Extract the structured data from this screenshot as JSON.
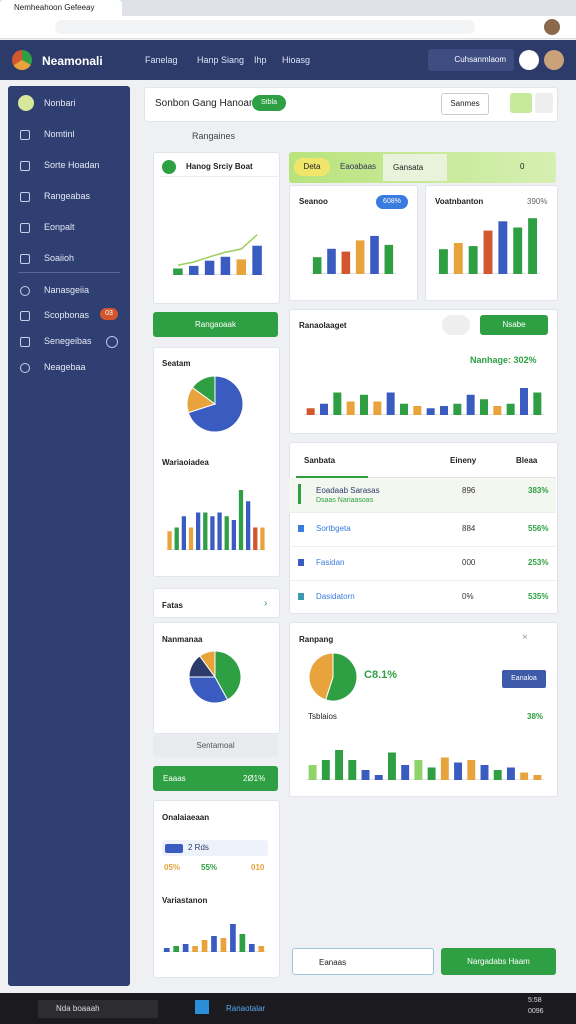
{
  "browser": {
    "tab": "Nemheahoon Gefeeay"
  },
  "header": {
    "brand": "Neamonali",
    "nav": [
      "Fanelag",
      "Hanp Siang",
      "Ihp",
      "Hioasg"
    ],
    "user": "Cuhsanmlaom"
  },
  "sidebar": {
    "items": [
      "Nonbari",
      "Nomtinl",
      "Sorte Hoadan",
      "Rangeabas",
      "Eonpalt",
      "Soaiioh",
      "Nanasgeiia",
      "Scopbonas",
      "Senegeibas",
      "Neagebaa"
    ],
    "badge": "03"
  },
  "toolbar": {
    "title": "Sonbon Gang Hanoante",
    "status": "Stbla",
    "button": "Sanmes"
  },
  "section": "Rangaines",
  "left": {
    "card1": "Hanog Srciy Boat",
    "button1": "Rangaoaak",
    "pie1": "Seatam",
    "bars1": "Wariaoiadea",
    "fatas": "Fatas",
    "pie2": "Nanmanaa",
    "grey": "Sentamoal",
    "green": "Eaaas",
    "green_value": "2Ø1%",
    "card4": "Onalaiaeaan",
    "row1": "2 Rds",
    "row2a": "05%",
    "row2b": "55%",
    "row2c": "010",
    "bars2": "Variastanon"
  },
  "tabs": [
    "Deta",
    "Eaoabaas",
    "Gansata",
    "0"
  ],
  "cards": {
    "seanoo": "Seanoo",
    "seanoo_badge": "608%",
    "voat": "Voatnbanton",
    "voat_value": "390%",
    "rana": "Ranaolaaget",
    "rana_button": "Nsabe",
    "rana_value": "Nanhage: 302%",
    "ranpang": "Ranpang",
    "ranpang_value": "C8.1%",
    "ranpang_button": "Eanaloa",
    "tsb": "Tsblaios",
    "tsb_value": "38%"
  },
  "table": {
    "header": [
      "Sanbata",
      "Eineny",
      "Bleaa"
    ],
    "rows": [
      [
        "Eoadaab Sarasas",
        "896",
        "383%"
      ],
      [
        "Sortbgeta",
        "884",
        "556%"
      ],
      [
        "Fasidan",
        "000",
        "253%"
      ],
      [
        "Dasidatorn",
        "0%",
        "535%"
      ]
    ],
    "sub": "Dsaas Nariaasoas"
  },
  "bottom": {
    "left": "Eanaas",
    "right": "Nargadabs Haam"
  },
  "taskbar": {
    "search": "Nda boaaah",
    "app": "Ranaotalar",
    "time": "5:58",
    "date": "0096"
  },
  "charts": {
    "c1": {
      "type": "bar",
      "ylim": [
        0,
        100
      ],
      "values": [
        10,
        14,
        22,
        28,
        24,
        45
      ],
      "colors": [
        "#2ea043",
        "#3a5bbf",
        "#3a5bbf",
        "#3a5bbf",
        "#e8a33d",
        "#3a5bbf"
      ],
      "line": [
        15,
        20,
        28,
        35,
        40,
        62
      ]
    },
    "c2": {
      "type": "bar",
      "ylim": [
        0,
        100
      ],
      "values": [
        30,
        45,
        40,
        60,
        68,
        52
      ],
      "colors": [
        "#2ea043",
        "#3a5bbf",
        "#d2562e",
        "#e8a33d",
        "#3a5bbf",
        "#2ea043"
      ]
    },
    "c3": {
      "type": "bar",
      "ylim": [
        0,
        100
      ],
      "values": [
        40,
        50,
        45,
        70,
        85,
        75,
        90
      ],
      "colors": [
        "#2ea043",
        "#e8a33d",
        "#2ea043",
        "#d2562e",
        "#3a5bbf",
        "#2ea043",
        "#2ea043"
      ]
    },
    "c4": {
      "type": "bar",
      "ylim": [
        0,
        100
      ],
      "values": [
        15,
        25,
        50,
        30,
        45,
        30,
        50,
        25,
        20,
        15,
        20,
        25,
        45,
        35,
        20,
        25,
        60,
        50
      ],
      "colors": [
        "#d2562e",
        "#3a5bbf",
        "#2ea043",
        "#e8a33d",
        "#2ea043",
        "#e8a33d",
        "#3a5bbf",
        "#2ea043",
        "#e8a33d",
        "#3a5bbf",
        "#3a5bbf",
        "#2ea043",
        "#3a5bbf",
        "#2ea043",
        "#e8a33d",
        "#2ea043",
        "#3a5bbf",
        "#2ea043"
      ]
    },
    "c5": {
      "type": "pie",
      "values": [
        70,
        15,
        15
      ],
      "colors": [
        "#3a5bbf",
        "#e8a33d",
        "#2ea043"
      ]
    },
    "c6": {
      "type": "bar",
      "ylim": [
        0,
        100
      ],
      "values": [
        25,
        30,
        45,
        30,
        50,
        50,
        45,
        50,
        45,
        40,
        80,
        65,
        30,
        30
      ],
      "colors": [
        "#e8a33d",
        "#2ea043",
        "#3a5bbf",
        "#e8a33d",
        "#3a5bbf",
        "#2ea043",
        "#3a5bbf",
        "#3a5bbf",
        "#2ea043",
        "#3a5bbf",
        "#2ea043",
        "#3a5bbf",
        "#d2562e",
        "#e8a33d"
      ]
    },
    "c7": {
      "type": "pie",
      "values": [
        42,
        33,
        15,
        10
      ],
      "colors": [
        "#2ea043",
        "#3a5bbf",
        "#2d3b6b",
        "#e8a33d"
      ]
    },
    "c8": {
      "type": "pie",
      "values": [
        55,
        45
      ],
      "colors": [
        "#2ea043",
        "#e8a33d"
      ]
    },
    "c9": {
      "type": "bar",
      "ylim": [
        0,
        100
      ],
      "values": [
        30,
        40,
        60,
        40,
        20,
        10,
        55,
        30,
        40,
        25,
        45,
        35,
        40,
        30,
        20,
        25,
        15,
        10
      ],
      "colors": [
        "#8fd36b",
        "#2ea043",
        "#2ea043",
        "#2ea043",
        "#3a5bbf",
        "#3a5bbf",
        "#2ea043",
        "#3a5bbf",
        "#8fd36b",
        "#2ea043",
        "#e8a33d",
        "#3a5bbf",
        "#e8a33d",
        "#3a5bbf",
        "#2ea043",
        "#3a5bbf",
        "#e8a33d",
        "#e8a33d"
      ]
    },
    "c10": {
      "type": "bar",
      "ylim": [
        0,
        100
      ],
      "values": [
        10,
        15,
        20,
        15,
        30,
        40,
        35,
        70,
        45,
        20,
        15
      ],
      "colors": [
        "#3a5bbf",
        "#2ea043",
        "#3a5bbf",
        "#e8a33d",
        "#e8a33d",
        "#3a5bbf",
        "#e8a33d",
        "#3a5bbf",
        "#2ea043",
        "#3a5bbf",
        "#e8a33d"
      ]
    }
  }
}
